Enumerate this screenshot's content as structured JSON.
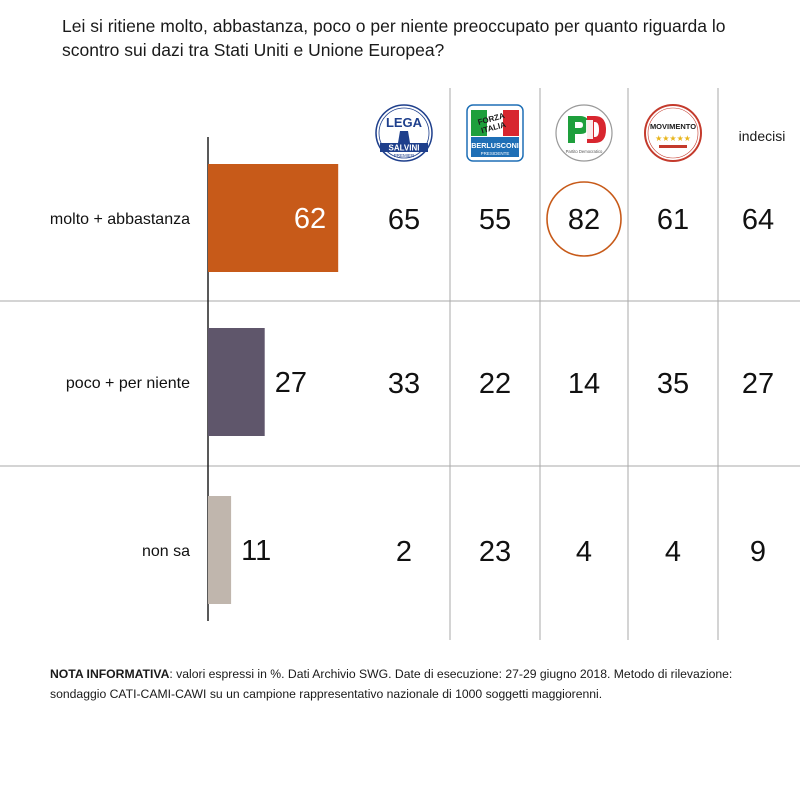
{
  "title": "Lei si ritiene molto, abbastanza, poco o per niente preoccupato per quanto riguarda lo scontro sui dazi tra Stati Uniti e Unione Europea?",
  "chart_data": {
    "type": "bar",
    "categories": [
      "molto + abbastanza",
      "poco + per niente",
      "non sa"
    ],
    "values": [
      62,
      27,
      11
    ],
    "bar_colors": [
      "#c75a19",
      "#5f566b",
      "#c0b6ad"
    ],
    "highlight_color": "#c75a19",
    "table": {
      "columns": [
        {
          "name": "Lega - Salvini Premier",
          "icon": "lega-logo",
          "label": ""
        },
        {
          "name": "Forza Italia - Berlusconi Presidente",
          "icon": "forza-italia-logo",
          "label": ""
        },
        {
          "name": "PD - Partito Democratico",
          "icon": "pd-logo",
          "label": ""
        },
        {
          "name": "Movimento 5 Stelle",
          "icon": "m5s-logo",
          "label": ""
        },
        {
          "name": "indecisi",
          "icon": "",
          "label": "indecisi"
        }
      ],
      "rows": [
        [
          65,
          55,
          82,
          61,
          64
        ],
        [
          33,
          22,
          14,
          35,
          27
        ],
        [
          2,
          23,
          4,
          4,
          9
        ]
      ],
      "highlighted_cell": {
        "row": 0,
        "col": 2
      }
    },
    "logo_text": {
      "lega": "LEGA",
      "salvini": "SALVINI",
      "premier": "PREMIER",
      "forza": "FORZA",
      "italia": "ITALIA",
      "berlusconi": "BERLUSCONI",
      "presidente": "PRESIDENTE",
      "pd": "PD",
      "pd_sub": "Partito Democratico",
      "movimento": "MOVIMENTO"
    }
  },
  "note": {
    "label": "NOTA INFORMATIVA",
    "text": ": valori espressi in %. Dati Archivio SWG. Date di esecuzione: 27-29 giugno 2018. Metodo di rilevazione: sondaggio CATI-CAMI-CAWI su un campione rappresentativo nazionale di 1000 soggetti maggiorenni."
  }
}
